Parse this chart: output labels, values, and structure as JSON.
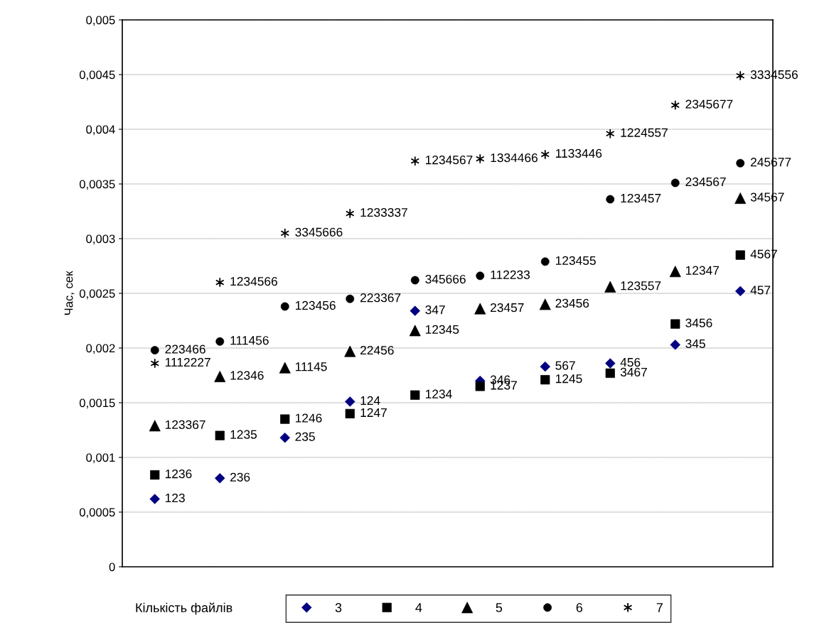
{
  "chart_data": {
    "type": "scatter",
    "ylabel": "Час, сек",
    "legend_title": "Кількість файлів",
    "categories": [
      null,
      null,
      null,
      null,
      null,
      null,
      null,
      null,
      null,
      null
    ],
    "ylim": [
      0,
      0.005
    ],
    "yticks": [
      {
        "value": 0,
        "label": "0"
      },
      {
        "value": 0.0005,
        "label": "0,0005"
      },
      {
        "value": 0.001,
        "label": "0,001"
      },
      {
        "value": 0.0015,
        "label": "0,0015"
      },
      {
        "value": 0.002,
        "label": "0,002"
      },
      {
        "value": 0.0025,
        "label": "0,0025"
      },
      {
        "value": 0.003,
        "label": "0,003"
      },
      {
        "value": 0.0035,
        "label": "0,0035"
      },
      {
        "value": 0.004,
        "label": "0,004"
      },
      {
        "value": 0.0045,
        "label": "0,0045"
      },
      {
        "value": 0.005,
        "label": "0,005"
      }
    ],
    "grid": "y",
    "legend": "bottom",
    "series": [
      {
        "name": "3",
        "color": "#000080",
        "marker": "diamond",
        "values": [
          0.00062,
          0.00081,
          0.00118,
          0.00151,
          0.00234,
          0.0017,
          0.00183,
          0.00186,
          0.00203,
          0.00252
        ]
      },
      {
        "name": "4",
        "color": "#000000",
        "marker": "square",
        "values": [
          0.00084,
          0.0012,
          0.00135,
          0.0014,
          0.00157,
          0.00165,
          0.00171,
          0.00177,
          0.00222,
          0.00285
        ]
      },
      {
        "name": "5",
        "color": "#000000",
        "marker": "triangle",
        "values": [
          0.00129,
          0.00174,
          0.00182,
          0.00197,
          0.00216,
          0.00236,
          0.0024,
          0.00256,
          0.0027,
          0.00337
        ]
      },
      {
        "name": "6",
        "color": "#000000",
        "marker": "circle",
        "values": [
          0.00198,
          0.00206,
          0.00238,
          0.00245,
          0.00262,
          0.00266,
          0.00279,
          0.00336,
          0.00351,
          0.00369
        ]
      },
      {
        "name": "7",
        "color": "#000000",
        "marker": "cross",
        "values": [
          0.00186,
          0.0026,
          0.00305,
          0.00323,
          0.00371,
          0.00373,
          0.00377,
          0.00396,
          0.00422,
          0.00449
        ]
      }
    ],
    "annotations": [
      "123",
      "236",
      "235",
      "124",
      "347",
      "346",
      "567",
      "456",
      "345",
      "457",
      "1236",
      "1235",
      "1246",
      "1247",
      "1234",
      "1237",
      "1245",
      "3467",
      "3456",
      "4567",
      "123367",
      "12346",
      "11145",
      "22456",
      "12345",
      "23457",
      "23456",
      "123557",
      "12347",
      "34567",
      "223466",
      "111456",
      "123456",
      "223367",
      "345666",
      "112233",
      "123455",
      "123457",
      "234567",
      "245677",
      "1112227",
      "1234566",
      "3345666",
      "1233337",
      "1234567",
      "1334466",
      "1133446",
      "1224557",
      "2345677",
      "3334556"
    ]
  }
}
